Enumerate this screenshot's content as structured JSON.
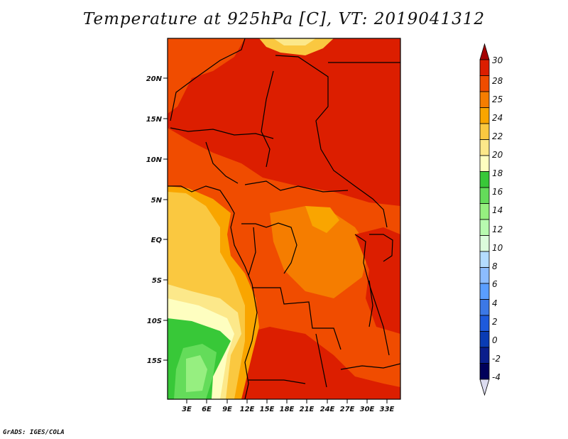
{
  "title": "Temperature at 925hPa [C], VT: 2019041312",
  "footer": "GrADS: IGES/COLA",
  "map": {
    "lat_labels": [
      "20N",
      "15N",
      "10N",
      "5N",
      "EQ",
      "5S",
      "10S",
      "15S"
    ],
    "lon_labels": [
      "3E",
      "6E",
      "9E",
      "12E",
      "15E",
      "18E",
      "21E",
      "24E",
      "27E",
      "30E",
      "33E"
    ]
  },
  "colorbar": {
    "labels": [
      "30",
      "28",
      "25",
      "24",
      "22",
      "20",
      "18",
      "16",
      "14",
      "12",
      "10",
      "8",
      "6",
      "4",
      "2",
      "0",
      "-2",
      "-4"
    ],
    "colors": [
      "#a50000",
      "#dc1e00",
      "#f04c00",
      "#f57d00",
      "#f9a500",
      "#fac840",
      "#fce88a",
      "#fefec0",
      "#38c838",
      "#64dc5a",
      "#96ef80",
      "#b8fab0",
      "#dcfcdc",
      "#b4dcff",
      "#8cbcff",
      "#5a9eff",
      "#3c78e6",
      "#1e5adc",
      "#0a3cb4",
      "#0a1e8c",
      "#00005a",
      "#dcdcf0"
    ]
  }
}
